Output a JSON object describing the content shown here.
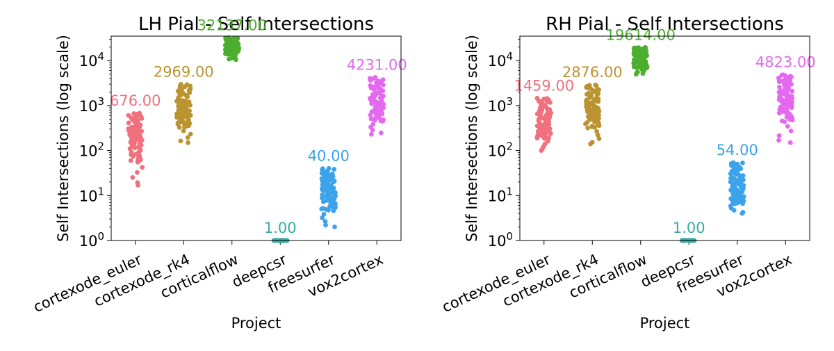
{
  "categories": [
    "cortexode_euler",
    "cortexode_rk4",
    "corticalflow",
    "deepcsr",
    "freesurfer",
    "vox2cortex"
  ],
  "palette": [
    "#f0707e",
    "#bb9432",
    "#4cae2f",
    "#39aca0",
    "#3ca2ea",
    "#e469ef"
  ],
  "chart_data": [
    {
      "type": "scatter",
      "style": "strip",
      "title": "LH Pial - Self Intersections",
      "xlabel": "Project",
      "ylabel": "Self Intersections (log scale)",
      "yscale": "log",
      "ylim": [
        1,
        35000
      ],
      "y_ticks": [
        1,
        10,
        100,
        1000,
        10000
      ],
      "y_tick_labels": [
        {
          "base": "10",
          "exp": "0"
        },
        {
          "base": "10",
          "exp": "1"
        },
        {
          "base": "10",
          "exp": "2"
        },
        {
          "base": "10",
          "exp": "3"
        },
        {
          "base": "10",
          "exp": "4"
        }
      ],
      "grid": false,
      "series": [
        {
          "category": "cortexode_euler",
          "color": "#f0707e",
          "max_label": "676.00",
          "min": 17,
          "q1": 120,
          "median": 210,
          "q3": 330,
          "max": 676
        },
        {
          "category": "cortexode_rk4",
          "color": "#bb9432",
          "max_label": "2969.00",
          "min": 150,
          "q1": 550,
          "median": 850,
          "q3": 1300,
          "max": 2969
        },
        {
          "category": "corticalflow",
          "color": "#4cae2f",
          "max_label": "32137.00",
          "min": 10500,
          "q1": 16000,
          "median": 20000,
          "q3": 25000,
          "max": 32137
        },
        {
          "category": "deepcsr",
          "color": "#39aca0",
          "max_label": "1.00",
          "min": 1,
          "q1": 1,
          "median": 1,
          "q3": 1,
          "max": 1
        },
        {
          "category": "freesurfer",
          "color": "#3ca2ea",
          "max_label": "40.00",
          "min": 2,
          "q1": 8,
          "median": 14,
          "q3": 22,
          "max": 40
        },
        {
          "category": "vox2cortex",
          "color": "#e469ef",
          "max_label": "4231.00",
          "min": 230,
          "q1": 700,
          "median": 1200,
          "q3": 2000,
          "max": 4231
        }
      ]
    },
    {
      "type": "scatter",
      "style": "strip",
      "title": "RH Pial - Self Intersections",
      "xlabel": "Project",
      "ylabel": "Self Intersections (log scale)",
      "yscale": "log",
      "ylim": [
        1,
        35000
      ],
      "y_ticks": [
        1,
        10,
        100,
        1000,
        10000
      ],
      "y_tick_labels": [
        {
          "base": "10",
          "exp": "0"
        },
        {
          "base": "10",
          "exp": "1"
        },
        {
          "base": "10",
          "exp": "2"
        },
        {
          "base": "10",
          "exp": "3"
        },
        {
          "base": "10",
          "exp": "4"
        }
      ],
      "grid": false,
      "series": [
        {
          "category": "cortexode_euler",
          "color": "#f0707e",
          "max_label": "1459.00",
          "min": 100,
          "q1": 280,
          "median": 450,
          "q3": 750,
          "max": 1459
        },
        {
          "category": "cortexode_rk4",
          "color": "#bb9432",
          "max_label": "2876.00",
          "min": 140,
          "q1": 550,
          "median": 900,
          "q3": 1500,
          "max": 2876
        },
        {
          "category": "corticalflow",
          "color": "#4cae2f",
          "max_label": "19614.00",
          "min": 5000,
          "q1": 8500,
          "median": 11000,
          "q3": 14000,
          "max": 19614
        },
        {
          "category": "deepcsr",
          "color": "#39aca0",
          "max_label": "1.00",
          "min": 1,
          "q1": 1,
          "median": 1,
          "q3": 1,
          "max": 1
        },
        {
          "category": "freesurfer",
          "color": "#3ca2ea",
          "max_label": "54.00",
          "min": 4,
          "q1": 9,
          "median": 16,
          "q3": 26,
          "max": 54
        },
        {
          "category": "vox2cortex",
          "color": "#e469ef",
          "max_label": "4823.00",
          "min": 150,
          "q1": 900,
          "median": 1500,
          "q3": 2500,
          "max": 4823
        }
      ]
    }
  ]
}
